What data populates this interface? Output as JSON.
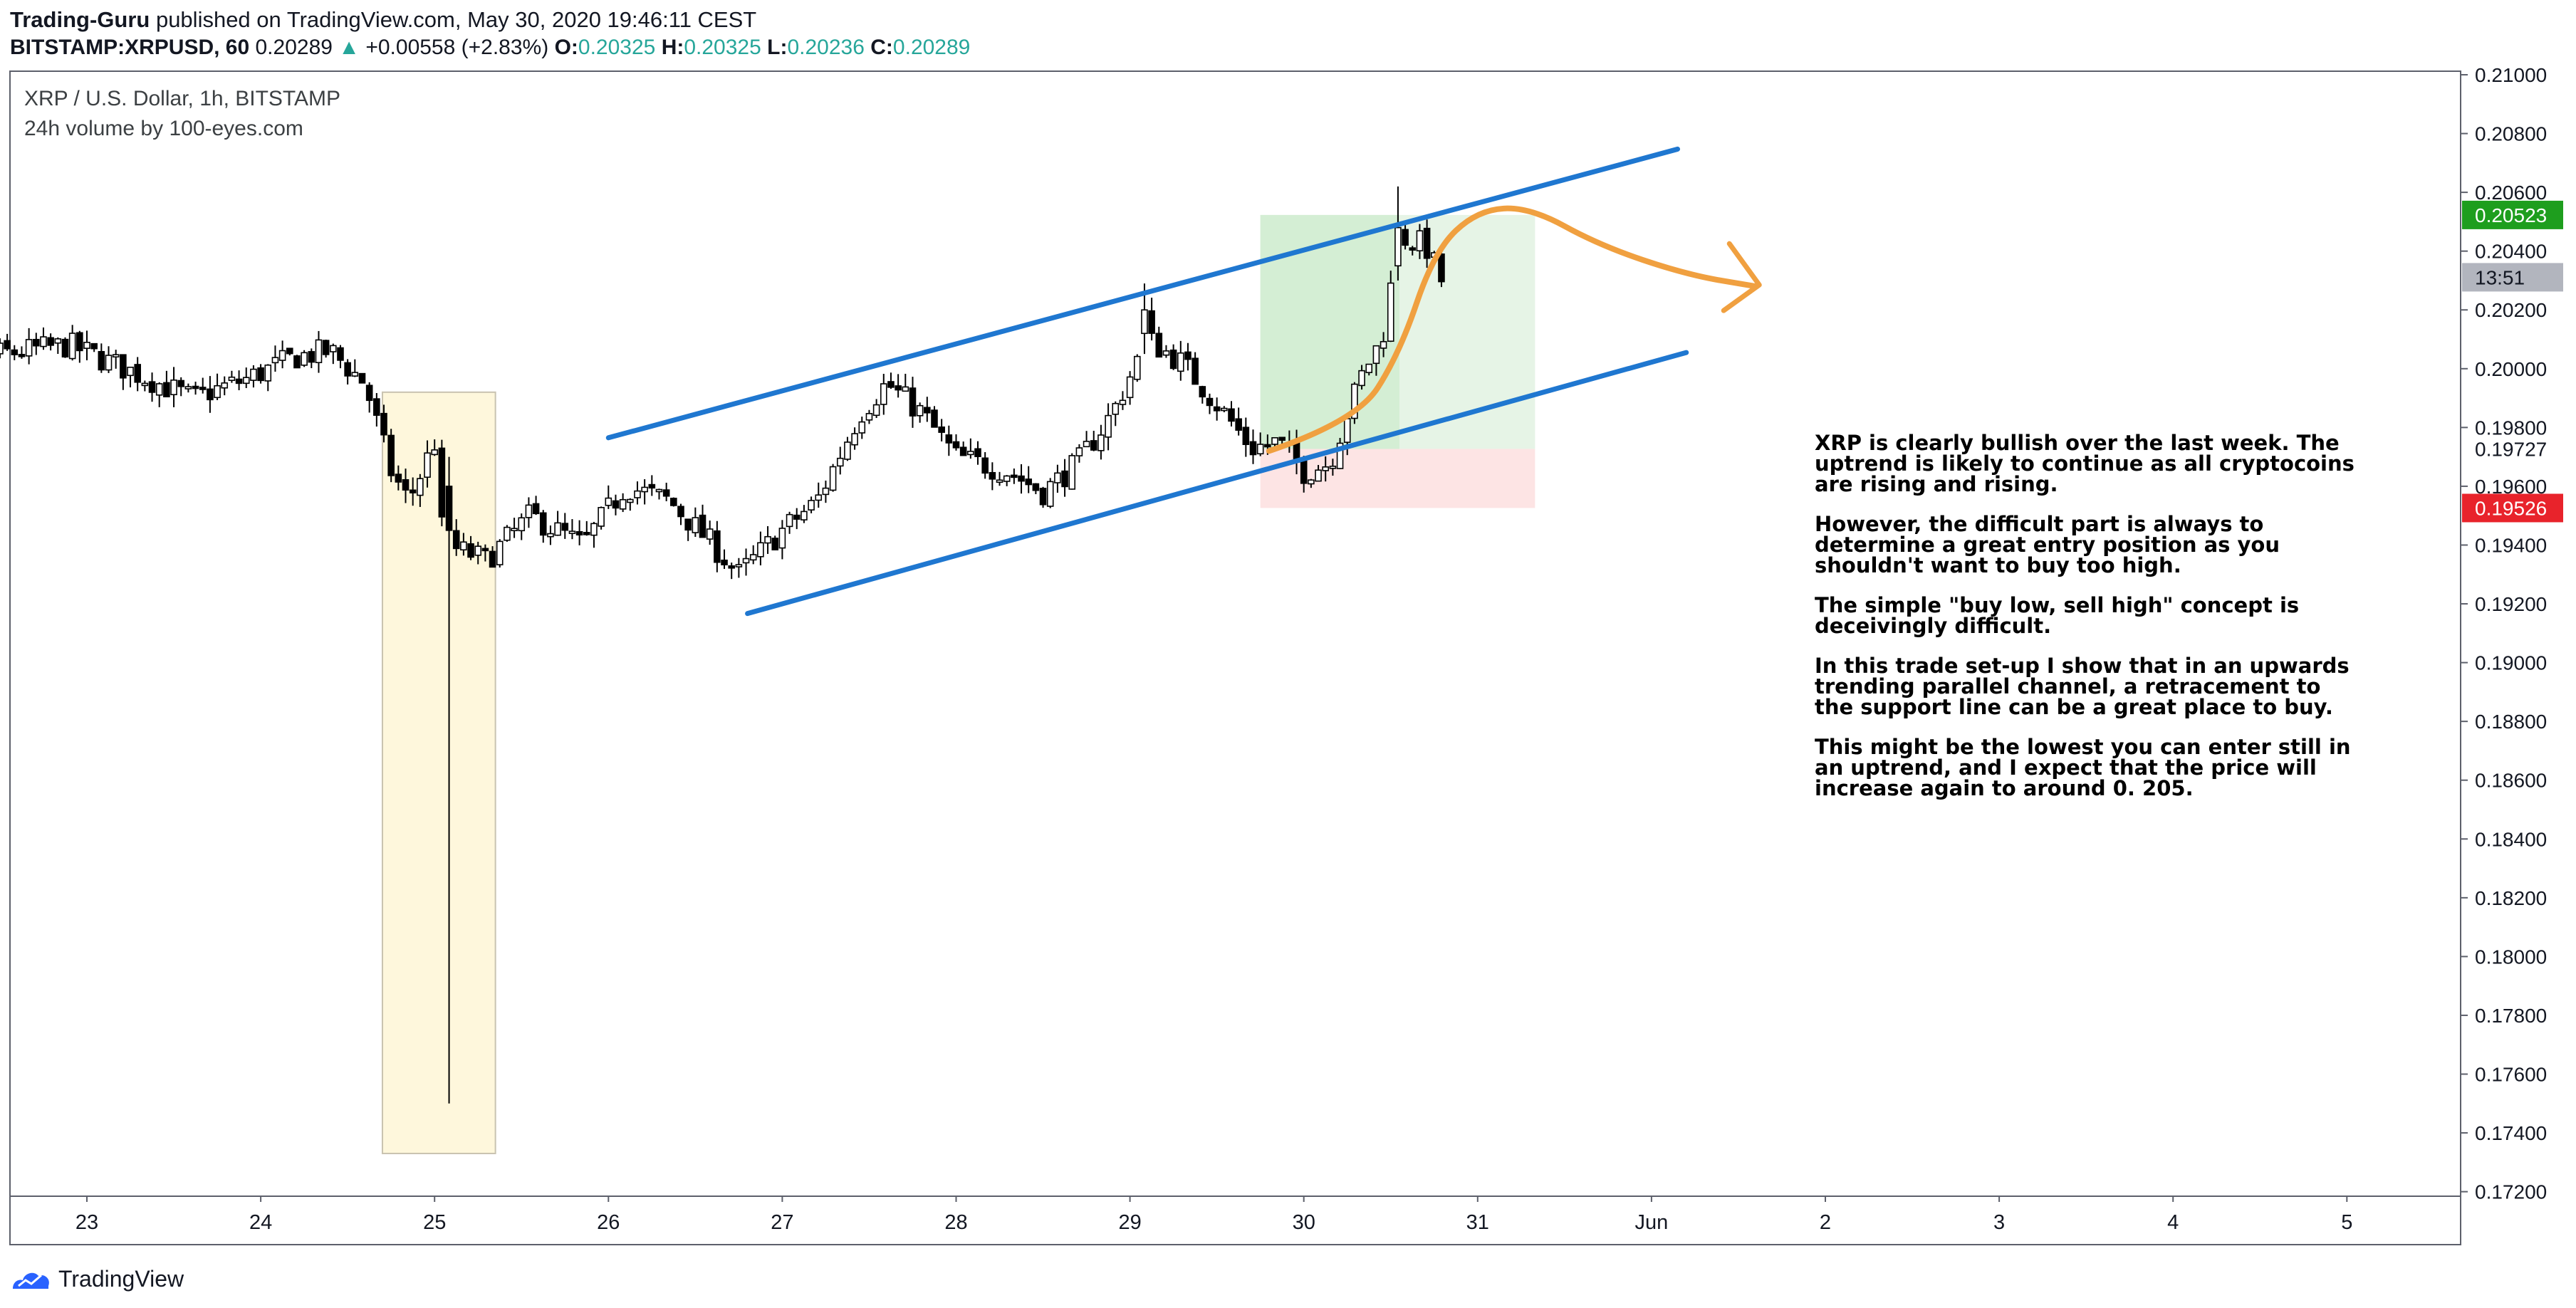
{
  "header": {
    "author": "Trading-Guru",
    "published_text": "published on TradingView.com, May 30, 2020 19:46:11 CEST",
    "symbol": "BITSTAMP:XRPUSD, 60",
    "last": "0.20289",
    "change": "+0.00558 (+2.83%)",
    "ohlc": [
      {
        "label": "O:",
        "value": "0.20325"
      },
      {
        "label": "H:",
        "value": "0.20325"
      },
      {
        "label": "L:",
        "value": "0.20236"
      },
      {
        "label": "C:",
        "value": "0.20289"
      }
    ]
  },
  "legend": {
    "title": "XRP / U.S. Dollar, 1h, BITSTAMP",
    "indicator": "24h volume by 100-eyes.com"
  },
  "notes": [
    "XRP is clearly bullish over the last week. The uptrend is likely to continue as all cryptocoins are rising and rising.",
    "However, the difficult part is always to determine a great entry position as you shouldn't want to buy too high.",
    "The simple \"buy low, sell high\" concept is deceivingly difficult.",
    "In this trade set-up I show that in an upwards trending parallel channel, a retracement to the support line can be a great place to buy.",
    "This might be the lowest you can enter still in an uptrend, and I expect that the price will increase again to around 0. 205."
  ],
  "footer": {
    "brand": "TradingView"
  },
  "chart_data": {
    "type": "candlestick",
    "interval": "1h",
    "x_ticks": [
      "23",
      "24",
      "25",
      "26",
      "27",
      "28",
      "29",
      "30",
      "31",
      "Jun",
      "2",
      "3",
      "4",
      "5"
    ],
    "y_ticks": [
      "0.21000",
      "0.20800",
      "0.20600",
      "0.20400",
      "0.20200",
      "0.20000",
      "0.19800",
      "0.19600",
      "0.19400",
      "0.19200",
      "0.19000",
      "0.18800",
      "0.18600",
      "0.18400",
      "0.18200",
      "0.18000",
      "0.17800",
      "0.17600",
      "0.17400",
      "0.17200"
    ],
    "price_tags": [
      {
        "label": "0.20523",
        "price": 0.20523,
        "color": "#1e9e1e"
      },
      {
        "label": "13:51",
        "price": 0.20311,
        "color": "#b2b5be"
      },
      {
        "label": "0.19727",
        "price": 0.19727,
        "color": "#ffffff"
      },
      {
        "label": "0.19526",
        "price": 0.19526,
        "color": "#e8232b"
      }
    ],
    "anchors": [
      {
        "day": 22.0,
        "price": 0.201
      },
      {
        "day": 22.5,
        "price": 0.2005
      },
      {
        "day": 22.9,
        "price": 0.2008
      },
      {
        "day": 23.3,
        "price": 0.1998
      },
      {
        "day": 23.6,
        "price": 0.199
      },
      {
        "day": 23.9,
        "price": 0.1996
      },
      {
        "day": 24.2,
        "price": 0.2004
      },
      {
        "day": 24.4,
        "price": 0.2006
      },
      {
        "day": 24.6,
        "price": 0.1995
      },
      {
        "day": 24.75,
        "price": 0.1965
      },
      {
        "day": 24.85,
        "price": 0.1955
      },
      {
        "day": 25.0,
        "price": 0.1975
      },
      {
        "day": 25.05,
        "price": 0.194
      },
      {
        "day": 25.3,
        "price": 0.1935
      },
      {
        "day": 25.55,
        "price": 0.195
      },
      {
        "day": 25.85,
        "price": 0.194
      },
      {
        "day": 26.1,
        "price": 0.196
      },
      {
        "day": 26.35,
        "price": 0.1955
      },
      {
        "day": 26.6,
        "price": 0.194
      },
      {
        "day": 26.75,
        "price": 0.193
      },
      {
        "day": 27.0,
        "price": 0.1945
      },
      {
        "day": 27.2,
        "price": 0.1955
      },
      {
        "day": 27.45,
        "price": 0.1985
      },
      {
        "day": 27.6,
        "price": 0.1995
      },
      {
        "day": 27.8,
        "price": 0.1985
      },
      {
        "day": 28.0,
        "price": 0.197
      },
      {
        "day": 28.3,
        "price": 0.1965
      },
      {
        "day": 28.5,
        "price": 0.1958
      },
      {
        "day": 28.7,
        "price": 0.1968
      },
      {
        "day": 28.9,
        "price": 0.1985
      },
      {
        "day": 29.1,
        "price": 0.201
      },
      {
        "day": 29.3,
        "price": 0.2002
      },
      {
        "day": 29.5,
        "price": 0.1988
      },
      {
        "day": 29.7,
        "price": 0.1973
      },
      {
        "day": 29.85,
        "price": 0.1975
      },
      {
        "day": 30.0,
        "price": 0.1965
      },
      {
        "day": 30.15,
        "price": 0.1968
      },
      {
        "day": 30.25,
        "price": 0.1985
      },
      {
        "day": 30.35,
        "price": 0.2
      },
      {
        "day": 30.45,
        "price": 0.201
      },
      {
        "day": 30.55,
        "price": 0.2045
      },
      {
        "day": 30.7,
        "price": 0.2042
      },
      {
        "day": 30.8,
        "price": 0.2029
      }
    ],
    "spike_candles": [
      {
        "day": 25.07,
        "open": 0.196,
        "close": 0.1945,
        "high": 0.197,
        "low": 0.175
      },
      {
        "day": 30.56,
        "open": 0.2035,
        "close": 0.2048,
        "high": 0.2062,
        "low": 0.203
      },
      {
        "day": 29.08,
        "open": 0.2012,
        "close": 0.202,
        "high": 0.2029,
        "low": 0.2005
      }
    ],
    "drawings": {
      "channel_upper": [
        [
          26.0,
          0.19765
        ],
        [
          28.6,
          0.206
        ]
      ],
      "channel_lower": [
        [
          26.8,
          0.19167
        ],
        [
          29.45,
          0.20035
        ]
      ],
      "channel_upper_ext": [
        [
          28.6,
          0.206
        ],
        [
          32.15,
          0.20747
        ]
      ],
      "channel_lower_ext": [
        [
          29.45,
          0.20035
        ],
        [
          32.2,
          0.20055
        ]
      ],
      "highlight_box": {
        "day_from": 24.7,
        "day_to": 25.35,
        "price_top": 0.1992,
        "price_bottom": 0.1733
      },
      "position_entry": 0.19727,
      "position_target": 0.20523,
      "position_stop": 0.19526,
      "position_day_from": 29.75,
      "position_day_to": 31.33,
      "position_filled_day_to": 30.55,
      "forecast_path": [
        [
          29.8,
          0.1972
        ],
        [
          30.3,
          0.1982
        ],
        [
          30.55,
          0.2005
        ],
        [
          30.75,
          0.204
        ],
        [
          31.0,
          0.2054
        ],
        [
          31.3,
          0.2055
        ],
        [
          31.7,
          0.2042
        ],
        [
          32.2,
          0.2032
        ],
        [
          32.6,
          0.2028
        ]
      ],
      "forecast_arrow_tip": [
        32.62,
        0.20285
      ]
    },
    "colors": {
      "channel": "#1f77d0",
      "forecast": "#f0a040",
      "highlight_fill": "#fef7dc",
      "highlight_stroke": "#c9c3b0",
      "target_fill": "#d4eed4",
      "target_fill_light": "#e6f4e6",
      "stop_fill": "#fde4e4"
    }
  }
}
